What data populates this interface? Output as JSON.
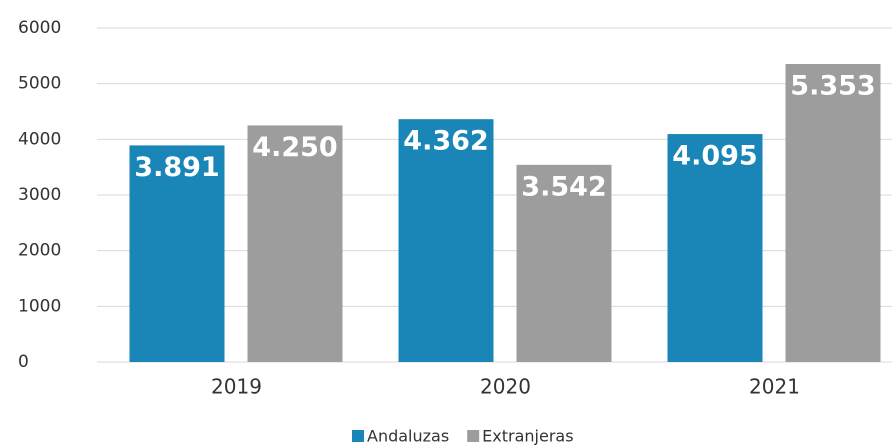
{
  "chart_data": {
    "type": "bar",
    "categories": [
      "2019",
      "2020",
      "2021"
    ],
    "series": [
      {
        "name": "Andaluzas",
        "color": "#1a86b8",
        "values": [
          3891,
          4362,
          4095
        ],
        "value_labels": [
          "3.891",
          "4.362",
          "4.095"
        ]
      },
      {
        "name": "Extranjeras",
        "color": "#9d9d9d",
        "values": [
          4250,
          3542,
          5353
        ],
        "value_labels": [
          "4.250",
          "3.542",
          "5.353"
        ]
      }
    ],
    "ylim": [
      0,
      6000
    ],
    "yticks": [
      0,
      1000,
      2000,
      3000,
      4000,
      5000,
      6000
    ],
    "grid": true
  }
}
